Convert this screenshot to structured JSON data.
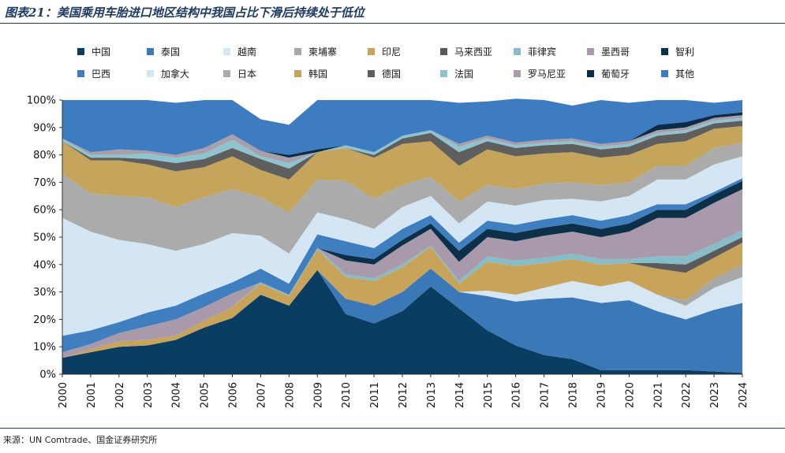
{
  "title": "图表21：美国乘用车胎进口地区结构中我国占比下滑后持续处于低位",
  "source": "来源：UN Comtrade、国金证券研究所",
  "chart_data": {
    "type": "area",
    "stacked": true,
    "x": [
      "2000",
      "2001",
      "2002",
      "2003",
      "2004",
      "2005",
      "2006",
      "2007",
      "2008",
      "2009",
      "2010",
      "2011",
      "2012",
      "2013",
      "2014",
      "2015",
      "2016",
      "2017",
      "2018",
      "2019",
      "2020",
      "2021",
      "2022",
      "2023",
      "2024"
    ],
    "ylim": [
      0,
      100
    ],
    "yticks": [
      "0%",
      "10%",
      "20%",
      "30%",
      "40%",
      "50%",
      "60%",
      "70%",
      "80%",
      "90%",
      "100%"
    ],
    "grid": false,
    "legend_position": "top",
    "series": [
      {
        "name": "中国",
        "color": "#0a3d62",
        "values": [
          6,
          8,
          10,
          10.5,
          12.5,
          17,
          20.5,
          29,
          25,
          38,
          22,
          18.5,
          23,
          32,
          24,
          16,
          10.5,
          7,
          5.5,
          1.5,
          1.5,
          1.5,
          1.5,
          1,
          0.5
        ]
      },
      {
        "name": "泰国",
        "color": "#3a78b7",
        "values": [
          0,
          0,
          0,
          0,
          0,
          0,
          0,
          0,
          0,
          0,
          5.5,
          6.5,
          7,
          6.5,
          6,
          12.5,
          16,
          20.5,
          22.5,
          24.5,
          25.5,
          21.5,
          18.5,
          22.5,
          25.5
        ]
      },
      {
        "name": "越南",
        "color": "#d7e6f3",
        "values": [
          0,
          0,
          0,
          0,
          0,
          0,
          0,
          0,
          0,
          0,
          0,
          0,
          0,
          0,
          0,
          2,
          2.5,
          4,
          6,
          6,
          7,
          6,
          5,
          8,
          9.5
        ]
      },
      {
        "name": "柬埔寨",
        "color": "#a8a8a8",
        "values": [
          0,
          0,
          0,
          0,
          0,
          0,
          0,
          0,
          0,
          0,
          0,
          0,
          0,
          0,
          0,
          0,
          0,
          0,
          0,
          0,
          0,
          0,
          2,
          3.5,
          4.5
        ]
      },
      {
        "name": "印尼",
        "color": "#c8a35a",
        "values": [
          0,
          1,
          2,
          2,
          1.5,
          2.5,
          4,
          4,
          3.5,
          7.5,
          8,
          9,
          9,
          8,
          3,
          10.5,
          10.5,
          9,
          8,
          8,
          6.5,
          9.5,
          10,
          7.5,
          8
        ]
      },
      {
        "name": "马来西亚",
        "color": "#5a5a5a",
        "values": [
          0,
          0,
          0,
          0,
          0,
          0,
          0,
          0,
          0,
          0,
          0,
          0,
          0,
          0,
          0,
          0,
          0,
          0,
          0,
          0,
          0,
          2,
          3,
          2.5,
          2
        ]
      },
      {
        "name": "菲律宾",
        "color": "#86bdc8",
        "values": [
          0,
          0,
          0,
          0,
          0,
          0,
          0,
          0.5,
          0.5,
          0.5,
          1,
          1,
          1,
          0.5,
          1,
          2,
          2,
          2,
          2,
          2,
          1.5,
          2.5,
          3,
          2.5,
          2.5
        ]
      },
      {
        "name": "墨西哥",
        "color": "#a99aab",
        "values": [
          2,
          2,
          3,
          5,
          6,
          5,
          5,
          0,
          0,
          0,
          5,
          5,
          7,
          6,
          7,
          7,
          7,
          8,
          8,
          8,
          10,
          14,
          14,
          15,
          15
        ]
      },
      {
        "name": "智利",
        "color": "#0c2f4a",
        "values": [
          0,
          0,
          0,
          0,
          0,
          0,
          0,
          0,
          0,
          0,
          2,
          2,
          2,
          2,
          4,
          3,
          3,
          3,
          3,
          3,
          3,
          3,
          3,
          3,
          3
        ]
      },
      {
        "name": "巴西",
        "color": "#3f7fbf",
        "values": [
          6,
          5,
          4,
          5,
          5,
          5,
          4,
          5,
          4,
          5,
          5,
          4,
          4,
          3,
          3,
          3,
          3,
          3,
          3,
          3,
          3,
          2,
          2,
          1,
          1
        ]
      },
      {
        "name": "加拿大",
        "color": "#d4e5f3",
        "values": [
          43,
          36,
          30,
          25,
          20,
          18,
          18,
          12,
          11,
          8,
          8,
          7,
          8,
          7,
          7,
          7,
          7,
          7,
          6,
          7,
          7,
          9,
          9,
          10,
          8
        ]
      },
      {
        "name": "日本",
        "color": "#ababab",
        "values": [
          16,
          14,
          16,
          17,
          16,
          17,
          16,
          14,
          15,
          12,
          14,
          11,
          8,
          7,
          8,
          6,
          6,
          6,
          6,
          6,
          5,
          5,
          5,
          6,
          5
        ]
      },
      {
        "name": "韩国",
        "color": "#c5a45c",
        "values": [
          12,
          12,
          13,
          12,
          13,
          11,
          12,
          10,
          12,
          10,
          12,
          15,
          15,
          13,
          13,
          13,
          12,
          11,
          11,
          10,
          10,
          8,
          9,
          7,
          6
        ]
      },
      {
        "name": "德国",
        "color": "#5e5e5e",
        "values": [
          0,
          1,
          1,
          2,
          3,
          3,
          3,
          4,
          4,
          0,
          0,
          1,
          2,
          3,
          5,
          3,
          3,
          3,
          3,
          3,
          3,
          3,
          3,
          2,
          2
        ]
      },
      {
        "name": "法国",
        "color": "#8ec4cf",
        "values": [
          1,
          1,
          1,
          2,
          2,
          2,
          3,
          1,
          2,
          0,
          1,
          1,
          1,
          1,
          2,
          1,
          1,
          1,
          1,
          1,
          1,
          1,
          1,
          1,
          1
        ]
      },
      {
        "name": "罗马尼亚",
        "color": "#a89fab",
        "values": [
          0,
          1,
          2,
          1,
          1,
          2,
          2,
          2,
          2,
          0,
          0,
          0,
          0,
          0,
          1,
          1,
          1,
          1,
          1,
          1,
          1,
          1,
          1,
          1,
          1
        ]
      },
      {
        "name": "葡萄牙",
        "color": "#0a2c48",
        "values": [
          0,
          0,
          0,
          0,
          0,
          0,
          0,
          0,
          1,
          1,
          0,
          0,
          0,
          0,
          0,
          0,
          0,
          0,
          0,
          0,
          0,
          2,
          2,
          1,
          1
        ]
      },
      {
        "name": "其他",
        "color": "#3d7cc0",
        "values": [
          14,
          19,
          18,
          18.5,
          19,
          17.5,
          12.5,
          11.5,
          11,
          18,
          16.5,
          19,
          13,
          11,
          15,
          12.5,
          16,
          14.5,
          12,
          16,
          14,
          9,
          8,
          4.5,
          4.5
        ]
      }
    ]
  }
}
